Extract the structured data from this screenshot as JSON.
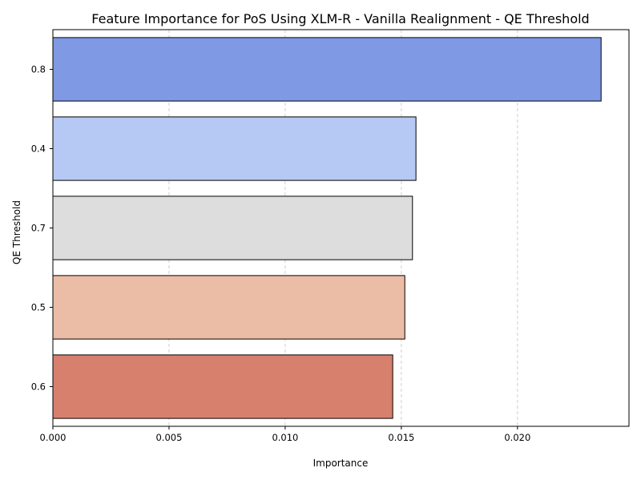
{
  "chart_data": {
    "type": "bar",
    "orientation": "horizontal",
    "title": "Feature Importance for PoS Using XLM-R - Vanilla Realignment - QE Threshold",
    "xlabel": "Importance",
    "ylabel": "QE Threshold",
    "categories": [
      "0.8",
      "0.4",
      "0.7",
      "0.5",
      "0.6"
    ],
    "values": [
      0.0236,
      0.01563,
      0.01548,
      0.01515,
      0.01463
    ],
    "colors": [
      "#7f99e4",
      "#b5c9f4",
      "#dddddd",
      "#ebbca6",
      "#d7806e"
    ],
    "xlim": [
      0,
      0.0248
    ],
    "xticks": [
      0,
      0.005,
      0.01,
      0.015,
      0.02
    ],
    "xtick_labels": [
      "0.000",
      "0.005",
      "0.010",
      "0.015",
      "0.020"
    ],
    "grid": {
      "x": true,
      "y": false,
      "style": "dashed"
    }
  }
}
